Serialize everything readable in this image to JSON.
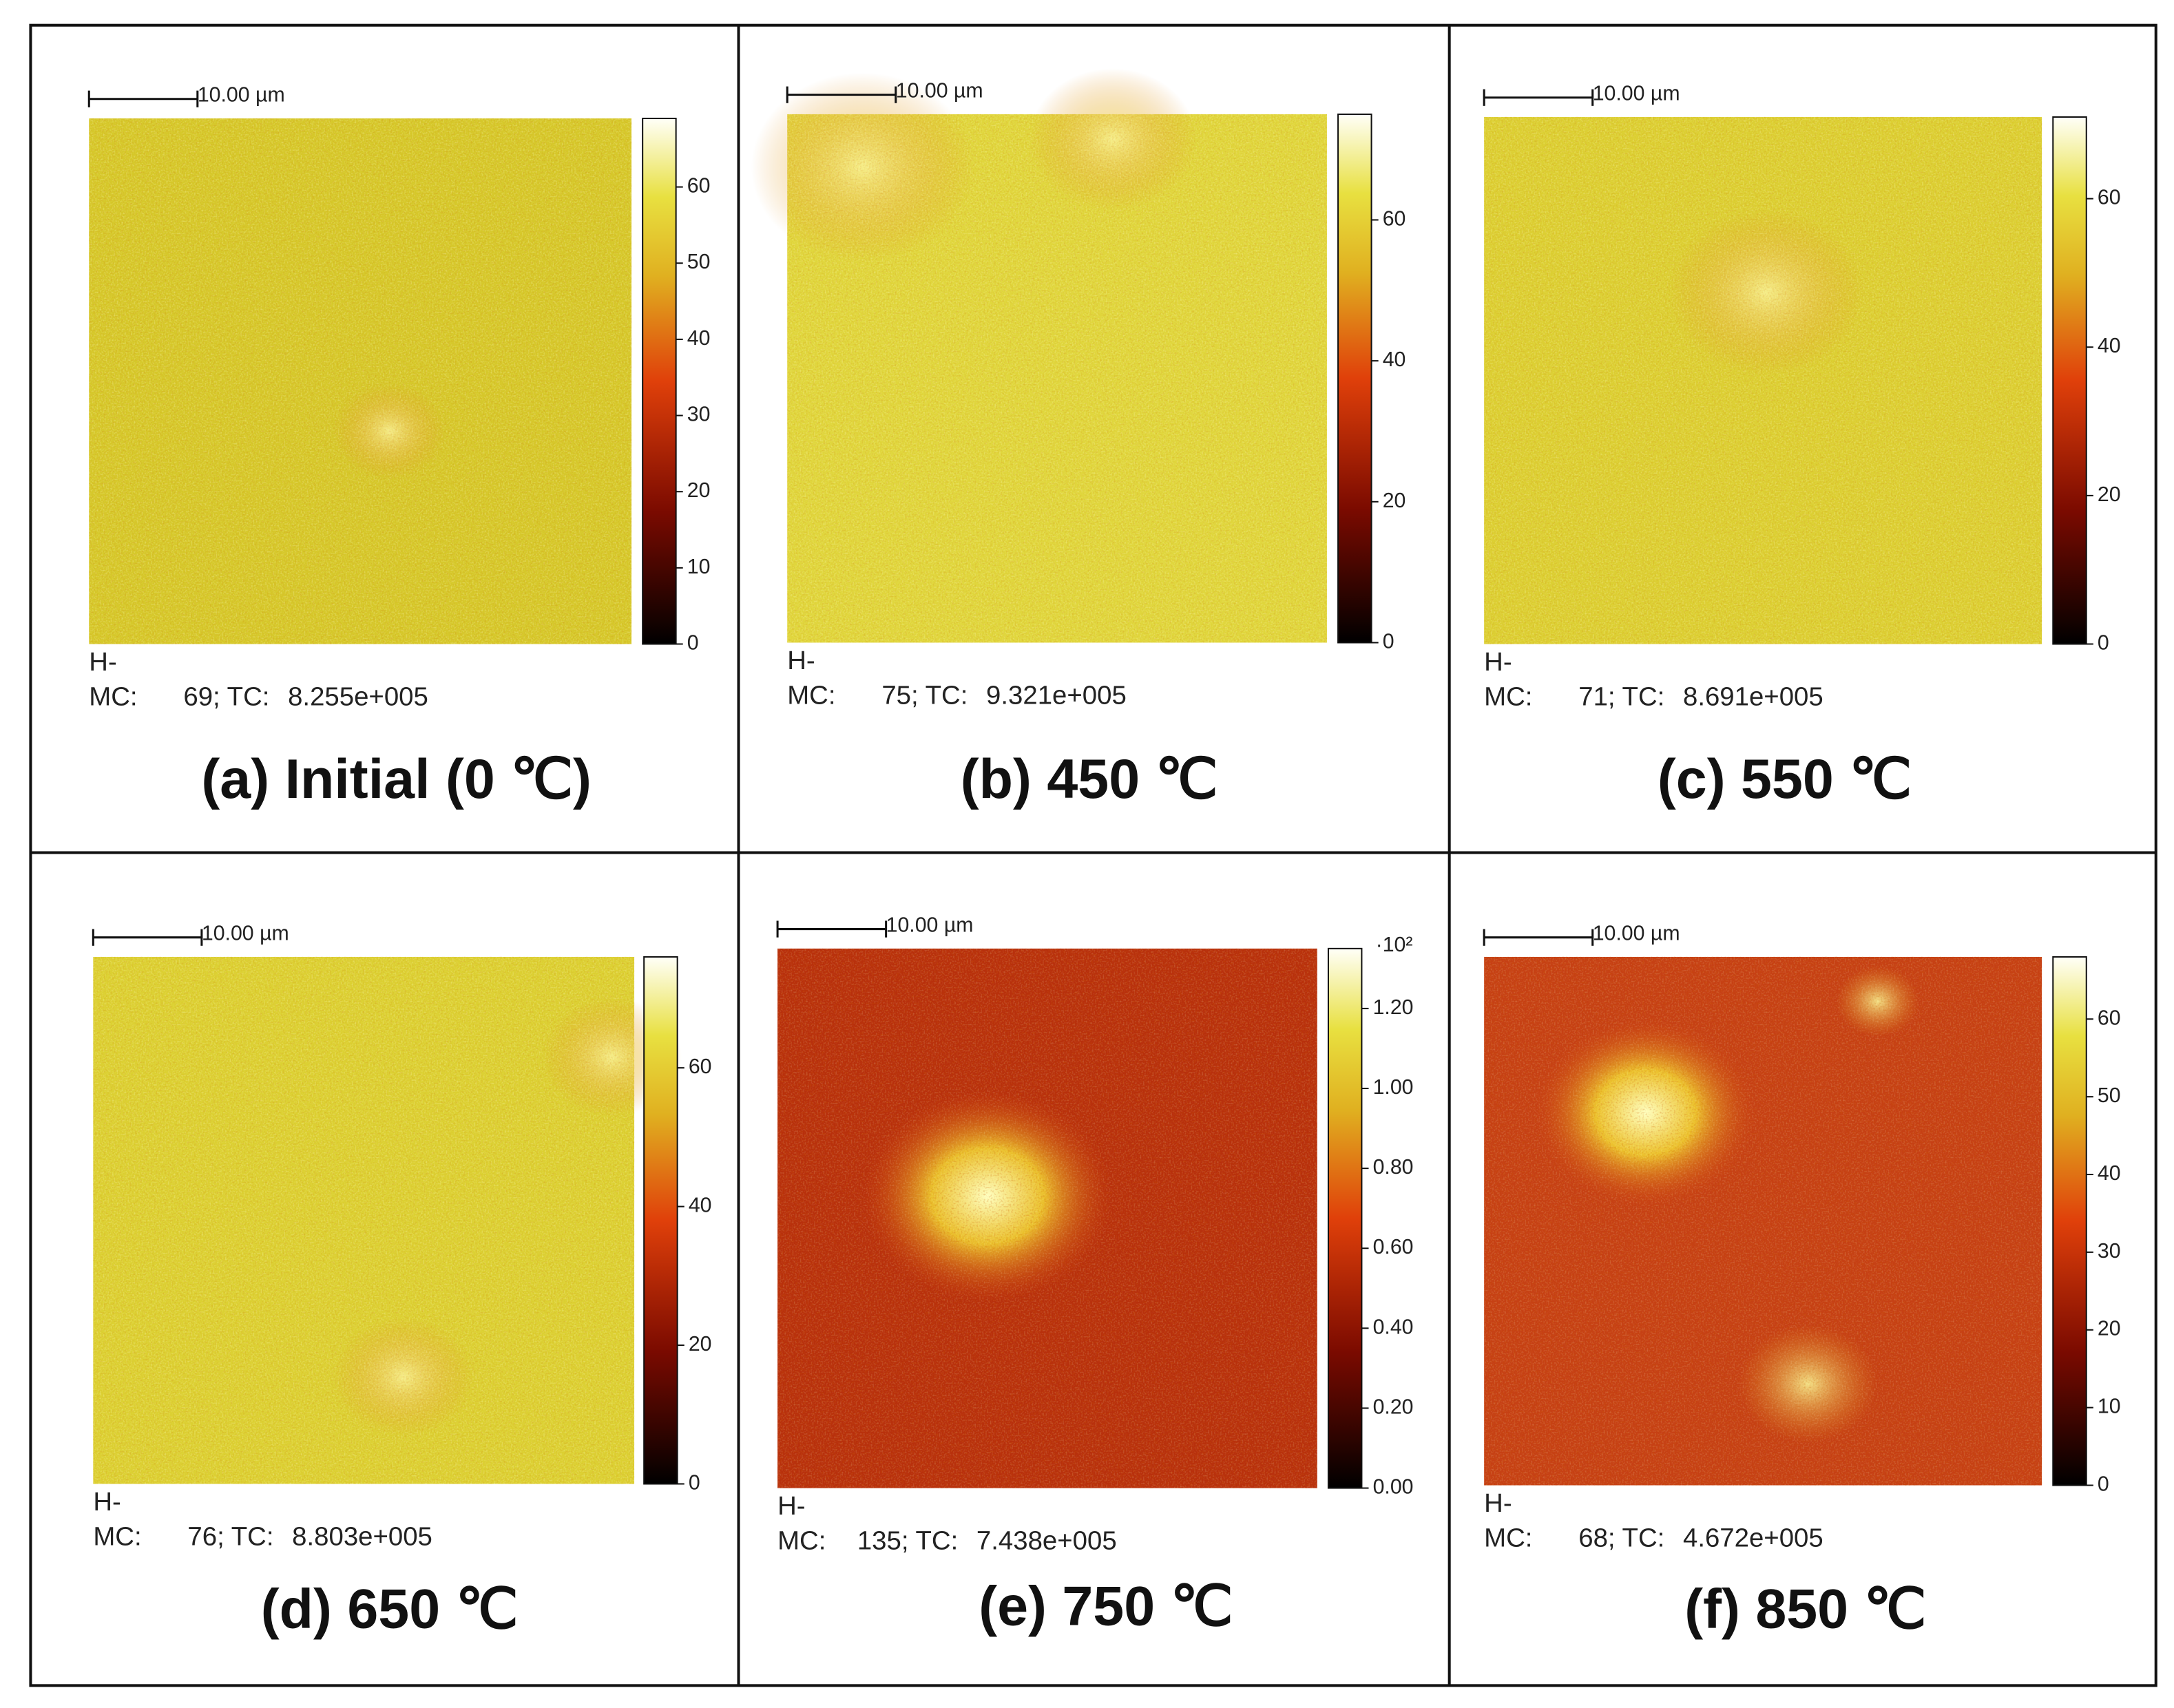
{
  "panels": [
    {
      "scale_bar": "10.00 µm",
      "colorbar": {
        "ticks": [
          0,
          10,
          20,
          30,
          40,
          50,
          60
        ]
      },
      "h_label": "H-",
      "mc_prefix": "MC:",
      "mc": 69,
      "tc_prefix": "; TC:",
      "tc": "8.255e+005",
      "caption": "(a) Initial (0 ℃)"
    },
    {
      "scale_bar": "10.00 µm",
      "colorbar": {
        "ticks": [
          0,
          20,
          40,
          60
        ]
      },
      "h_label": "H-",
      "mc_prefix": "MC:",
      "mc": 75,
      "tc_prefix": "; TC:",
      "tc": "9.321e+005",
      "caption": "(b) 450 ℃"
    },
    {
      "scale_bar": "10.00 µm",
      "colorbar": {
        "ticks": [
          0,
          20,
          40,
          60
        ]
      },
      "h_label": "H-",
      "mc_prefix": "MC:",
      "mc": 71,
      "tc_prefix": "; TC:",
      "tc": "8.691e+005",
      "caption": "(c) 550 ℃"
    },
    {
      "scale_bar": "10.00 µm",
      "colorbar": {
        "ticks": [
          0,
          20,
          40,
          60
        ]
      },
      "h_label": "H-",
      "mc_prefix": "MC:",
      "mc": 76,
      "tc_prefix": "; TC:",
      "tc": "8.803e+005",
      "caption": "(d) 650 ℃"
    },
    {
      "scale_bar": "10.00 µm",
      "colorbar": {
        "multiplier": "·10²",
        "ticks": [
          {
            "value": 0,
            "label": "0.00"
          },
          {
            "value": 20,
            "label": "0.20"
          },
          {
            "value": 40,
            "label": "0.40"
          },
          {
            "value": 60,
            "label": "0.60"
          },
          {
            "value": 80,
            "label": "0.80"
          },
          {
            "value": 100,
            "label": "1.00"
          },
          {
            "value": 120,
            "label": "1.20"
          }
        ]
      },
      "h_label": "H-",
      "mc_prefix": "MC:",
      "mc": 135,
      "tc_prefix": "; TC:",
      "tc": "7.438e+005",
      "caption": "(e) 750 ℃"
    },
    {
      "scale_bar": "10.00 µm",
      "colorbar": {
        "ticks": [
          0,
          10,
          20,
          30,
          40,
          50,
          60
        ]
      },
      "h_label": "H-",
      "mc_prefix": "MC:",
      "mc": 68,
      "tc_prefix": "; TC:",
      "tc": "4.672e+005",
      "caption": "(f) 850 ℃"
    }
  ]
}
